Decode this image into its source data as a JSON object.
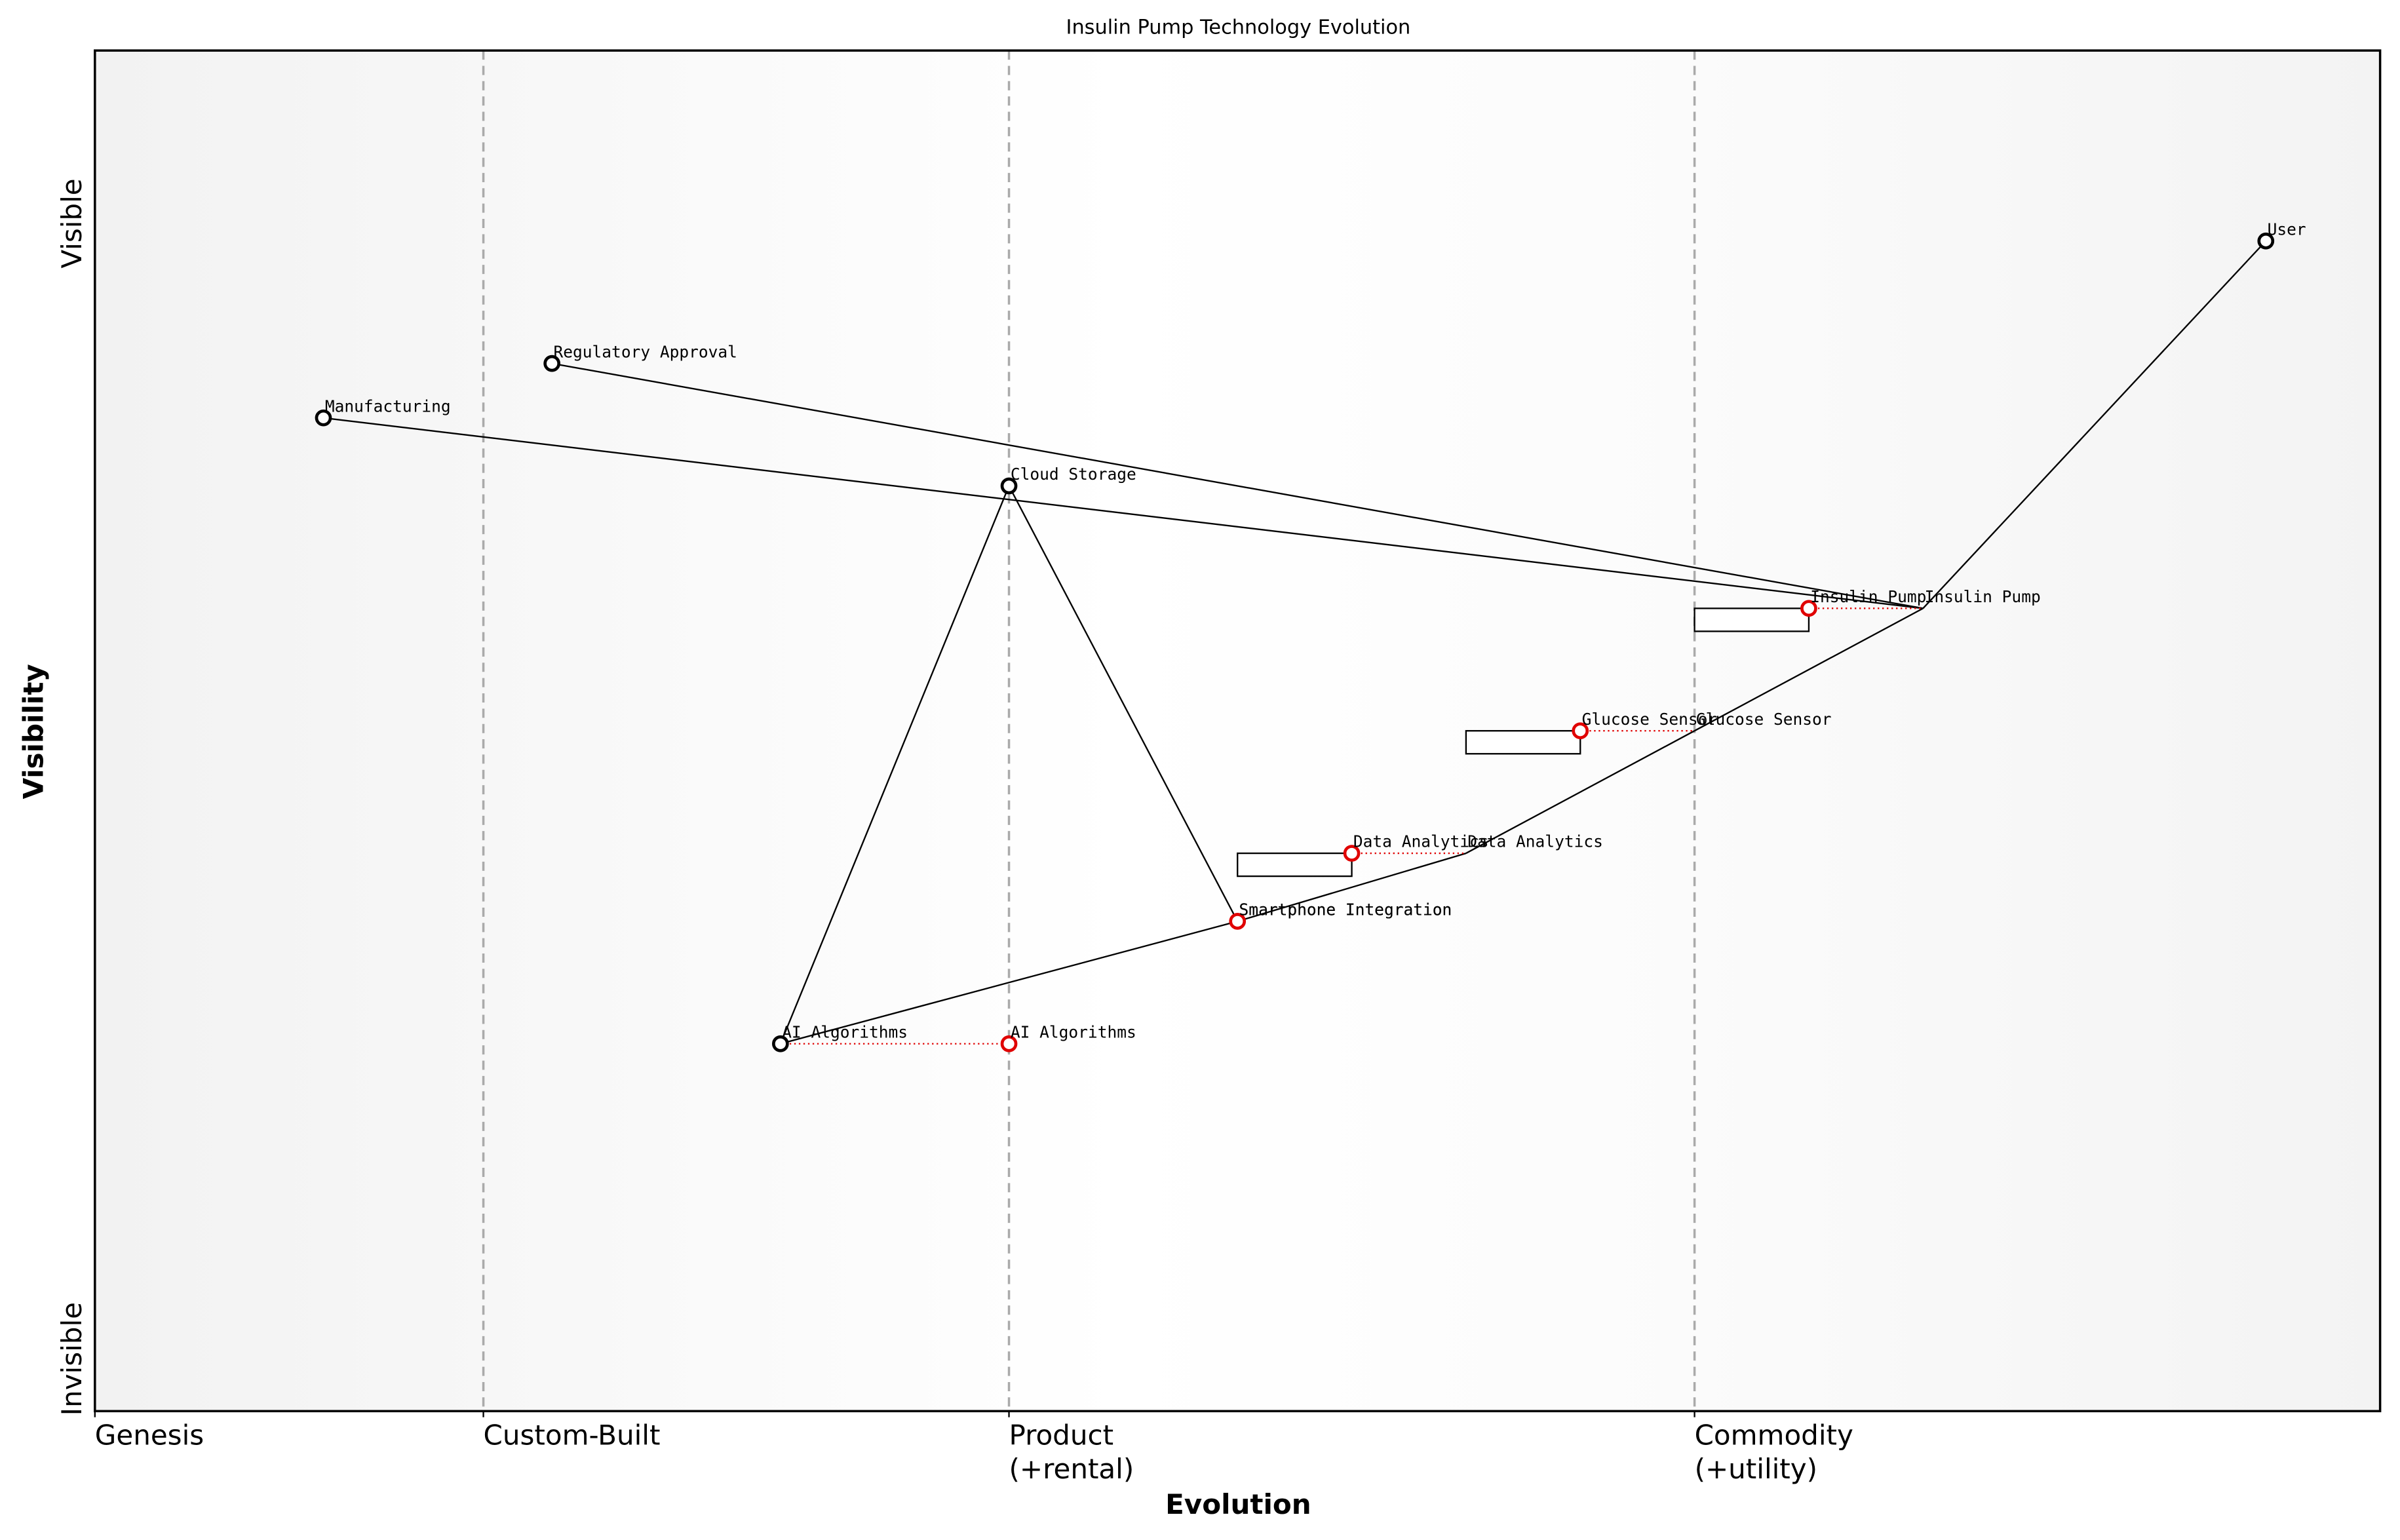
{
  "chart_data": {
    "type": "wardley",
    "title": "Insulin Pump Technology Evolution",
    "x_label": "Evolution",
    "y_label": "Visibility",
    "y_labels": {
      "top": "Visible",
      "bottom": "Invisible"
    },
    "xlim": [
      0,
      1
    ],
    "ylim": [
      0,
      1
    ],
    "stages": [
      {
        "value": 0,
        "label": [
          "Genesis"
        ]
      },
      {
        "value": 0.17,
        "label": [
          "Custom-Built"
        ]
      },
      {
        "value": 0.4,
        "label": [
          "Product",
          "(+rental)"
        ]
      },
      {
        "value": 0.7,
        "label": [
          "Commodity",
          "(+utility)"
        ]
      }
    ],
    "components": [
      {
        "name": "User",
        "x": 0.95,
        "y": 0.86,
        "color": "#000000"
      },
      {
        "name": "Regulatory Approval",
        "x": 0.2,
        "y": 0.77,
        "color": "#000000"
      },
      {
        "name": "Manufacturing",
        "x": 0.1,
        "y": 0.73,
        "color": "#000000"
      },
      {
        "name": "Cloud Storage",
        "x": 0.4,
        "y": 0.68,
        "color": "#000000"
      },
      {
        "name": "Insulin Pump",
        "x": 0.75,
        "y": 0.59,
        "color": "#e00000",
        "evolve": 0.8,
        "inertia": true,
        "anchor": "evolved"
      },
      {
        "name": "Glucose Sensor",
        "x": 0.65,
        "y": 0.5,
        "color": "#e00000",
        "evolve": 0.7,
        "inertia": true,
        "anchor": "evolved"
      },
      {
        "name": "Data Analytics",
        "x": 0.55,
        "y": 0.41,
        "color": "#e00000",
        "evolve": 0.6,
        "inertia": true,
        "anchor": "evolved"
      },
      {
        "name": "Smartphone Integration",
        "x": 0.5,
        "y": 0.36,
        "color": "#e00000",
        "evolve": 0.5
      },
      {
        "name": "AI Algorithms",
        "x": 0.3,
        "y": 0.27,
        "color": "#000000",
        "evolve": 0.4,
        "evolve_color": "#e00000"
      }
    ],
    "links": [
      [
        "User",
        "Insulin Pump"
      ],
      [
        "Insulin Pump",
        "Regulatory Approval"
      ],
      [
        "Insulin Pump",
        "Manufacturing"
      ],
      [
        "Insulin Pump",
        "Glucose Sensor"
      ],
      [
        "Glucose Sensor",
        "Data Analytics"
      ],
      [
        "Data Analytics",
        "Smartphone Integration"
      ],
      [
        "Smartphone Integration",
        "AI Algorithms"
      ],
      [
        "Smartphone Integration",
        "Cloud Storage"
      ],
      [
        "AI Algorithms",
        "Cloud Storage"
      ]
    ]
  }
}
